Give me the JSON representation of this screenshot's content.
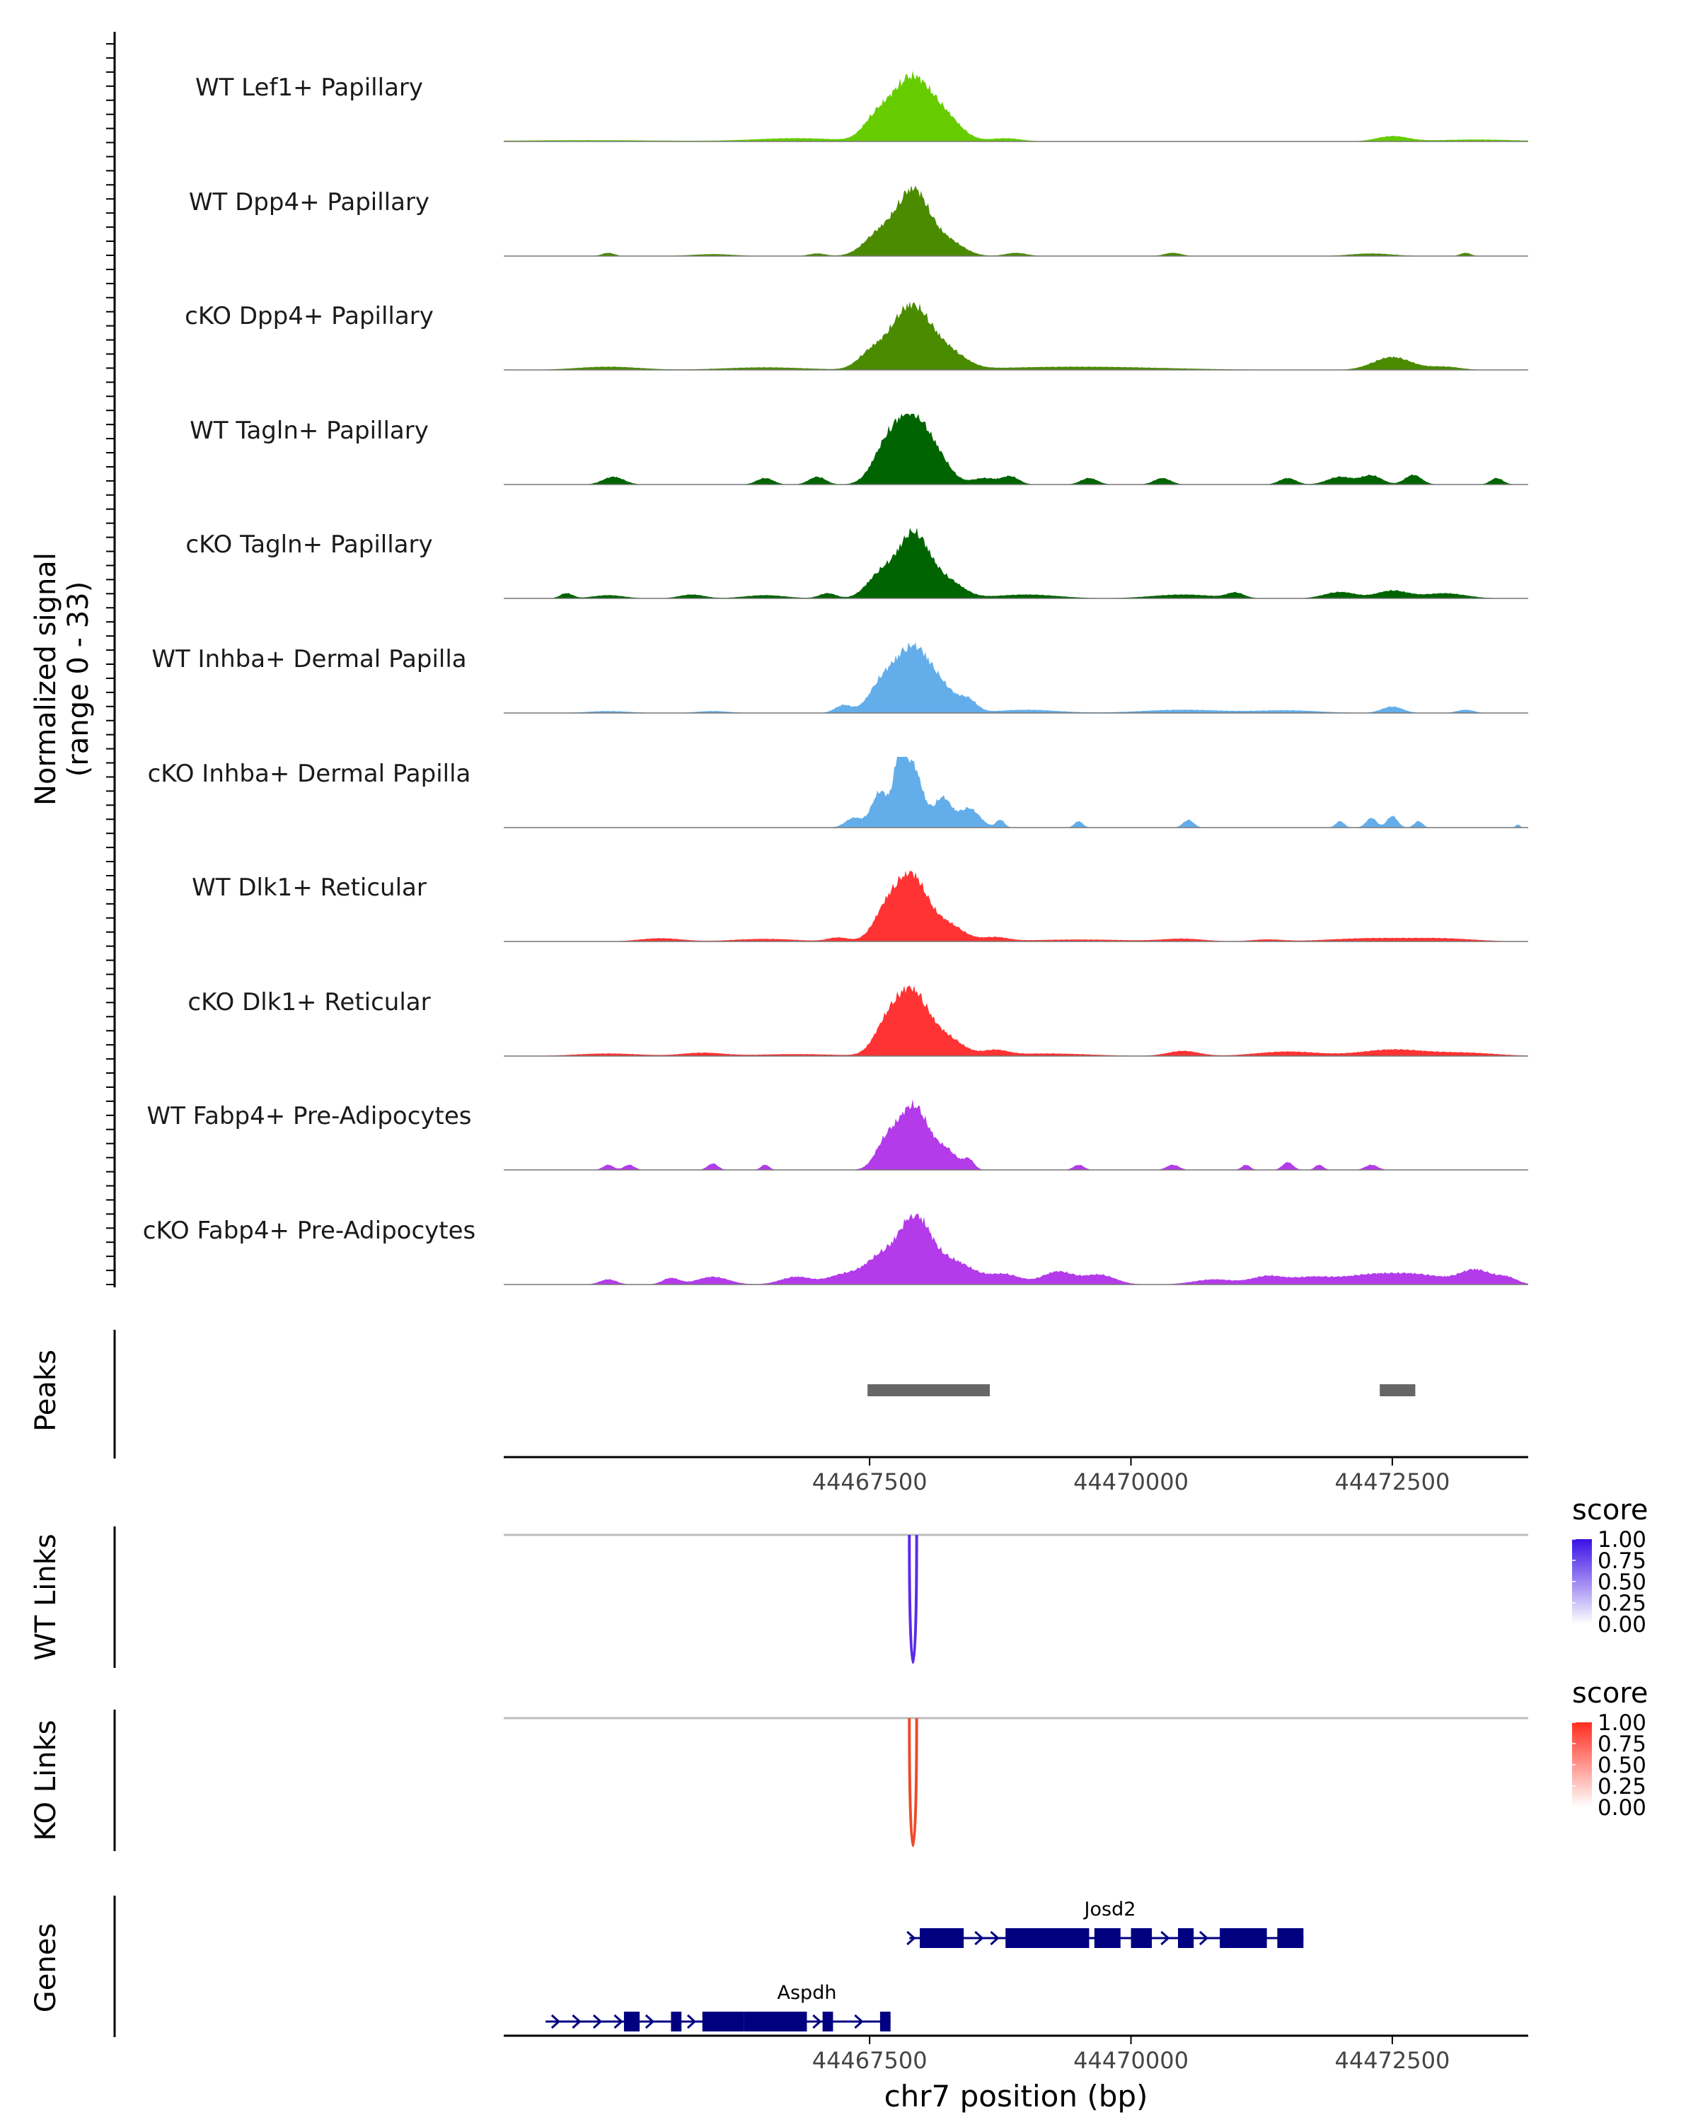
{
  "chart_data": {
    "type": "area",
    "title": "",
    "region": "chr7",
    "xlim": [
      44464000,
      44473800
    ],
    "coverage": {
      "ylabel_line1": "Normalized signal",
      "ylabel_line2": "(range 0 - 33)",
      "ylim": [
        0,
        33
      ],
      "tracks": [
        {
          "name": "WT Lef1+ Papillary",
          "color": "#66CC00",
          "bumps": [
            [
              44467900,
              200,
              1.0
            ],
            [
              44467550,
              120,
              0.25
            ],
            [
              44468250,
              150,
              0.25
            ],
            [
              44464800,
              800,
              0.02
            ],
            [
              44466800,
              400,
              0.05
            ],
            [
              44468800,
              150,
              0.05
            ],
            [
              44472500,
              150,
              0.08
            ],
            [
              44473300,
              400,
              0.03
            ]
          ]
        },
        {
          "name": "WT Dpp4+ Papillary",
          "color": "#4B8B00",
          "bumps": [
            [
              44467920,
              150,
              1.0
            ],
            [
              44467600,
              150,
              0.35
            ],
            [
              44468250,
              150,
              0.22
            ],
            [
              44465000,
              60,
              0.05
            ],
            [
              44466000,
              200,
              0.03
            ],
            [
              44467000,
              80,
              0.04
            ],
            [
              44468900,
              100,
              0.05
            ],
            [
              44470400,
              80,
              0.05
            ],
            [
              44472300,
              200,
              0.04
            ],
            [
              44473200,
              50,
              0.05
            ]
          ]
        },
        {
          "name": "cKO Dpp4+ Papillary",
          "color": "#4B8B00",
          "bumps": [
            [
              44467900,
              200,
              1.0
            ],
            [
              44467500,
              120,
              0.2
            ],
            [
              44468300,
              150,
              0.18
            ],
            [
              44465000,
              300,
              0.05
            ],
            [
              44466500,
              400,
              0.04
            ],
            [
              44469500,
              800,
              0.05
            ],
            [
              44472500,
              180,
              0.2
            ],
            [
              44473000,
              150,
              0.05
            ]
          ]
        },
        {
          "name": "WT Tagln+ Papillary",
          "color": "#006400",
          "bumps": [
            [
              44467900,
              150,
              1.0
            ],
            [
              44467650,
              130,
              0.5
            ],
            [
              44468150,
              130,
              0.35
            ],
            [
              44468600,
              120,
              0.1
            ],
            [
              44468850,
              80,
              0.12
            ],
            [
              44465050,
              100,
              0.12
            ],
            [
              44466500,
              80,
              0.1
            ],
            [
              44467000,
              80,
              0.12
            ],
            [
              44469600,
              80,
              0.1
            ],
            [
              44470300,
              80,
              0.1
            ],
            [
              44471500,
              80,
              0.1
            ],
            [
              44472000,
              120,
              0.12
            ],
            [
              44472300,
              100,
              0.14
            ],
            [
              44472700,
              80,
              0.15
            ],
            [
              44473500,
              60,
              0.1
            ]
          ]
        },
        {
          "name": "cKO Tagln+ Papillary",
          "color": "#006400",
          "bumps": [
            [
              44467920,
              150,
              1.0
            ],
            [
              44467600,
              130,
              0.35
            ],
            [
              44468250,
              150,
              0.25
            ],
            [
              44464600,
              60,
              0.08
            ],
            [
              44465000,
              150,
              0.05
            ],
            [
              44465800,
              120,
              0.06
            ],
            [
              44466500,
              200,
              0.05
            ],
            [
              44467100,
              80,
              0.08
            ],
            [
              44469000,
              300,
              0.06
            ],
            [
              44470500,
              300,
              0.06
            ],
            [
              44471000,
              80,
              0.08
            ],
            [
              44472000,
              150,
              0.1
            ],
            [
              44472500,
              150,
              0.12
            ],
            [
              44473000,
              200,
              0.08
            ]
          ]
        },
        {
          "name": "WT Inhba+ Dermal Papilla",
          "color": "#63AEEA",
          "bumps": [
            [
              44467900,
              170,
              1.0
            ],
            [
              44467600,
              120,
              0.35
            ],
            [
              44468200,
              150,
              0.3
            ],
            [
              44468450,
              80,
              0.15
            ],
            [
              44467250,
              80,
              0.12
            ],
            [
              44465000,
              200,
              0.03
            ],
            [
              44466000,
              150,
              0.03
            ],
            [
              44469000,
              300,
              0.05
            ],
            [
              44470500,
              400,
              0.05
            ],
            [
              44471500,
              300,
              0.04
            ],
            [
              44472500,
              100,
              0.1
            ],
            [
              44473200,
              80,
              0.05
            ]
          ]
        },
        {
          "name": "cKO Inhba+ Dermal Papilla",
          "color": "#63AEEA",
          "bumps": [
            [
              44467900,
              100,
              1.0
            ],
            [
              44467600,
              80,
              0.55
            ],
            [
              44467780,
              50,
              0.7
            ],
            [
              44468200,
              80,
              0.45
            ],
            [
              44468450,
              100,
              0.3
            ],
            [
              44467350,
              80,
              0.15
            ],
            [
              44468750,
              40,
              0.12
            ],
            [
              44469500,
              40,
              0.1
            ],
            [
              44470550,
              50,
              0.12
            ],
            [
              44472000,
              40,
              0.1
            ],
            [
              44472300,
              50,
              0.15
            ],
            [
              44472500,
              50,
              0.18
            ],
            [
              44472750,
              40,
              0.1
            ],
            [
              44473700,
              20,
              0.05
            ]
          ]
        },
        {
          "name": "WT Dlk1+ Reticular",
          "color": "#FF3333",
          "bumps": [
            [
              44467900,
              150,
              1.0
            ],
            [
              44467650,
              120,
              0.4
            ],
            [
              44468250,
              150,
              0.25
            ],
            [
              44468700,
              120,
              0.06
            ],
            [
              44465500,
              200,
              0.05
            ],
            [
              44466500,
              300,
              0.04
            ],
            [
              44467200,
              100,
              0.06
            ],
            [
              44469500,
              500,
              0.03
            ],
            [
              44470500,
              200,
              0.04
            ],
            [
              44471300,
              150,
              0.03
            ],
            [
              44472300,
              400,
              0.05
            ],
            [
              44473000,
              300,
              0.04
            ]
          ]
        },
        {
          "name": "cKO Dlk1+ Reticular",
          "color": "#FF3333",
          "bumps": [
            [
              44467900,
              160,
              1.0
            ],
            [
              44467650,
              120,
              0.35
            ],
            [
              44468250,
              150,
              0.25
            ],
            [
              44468700,
              120,
              0.08
            ],
            [
              44465000,
              300,
              0.04
            ],
            [
              44465900,
              200,
              0.05
            ],
            [
              44466800,
              400,
              0.03
            ],
            [
              44469200,
              400,
              0.04
            ],
            [
              44470500,
              150,
              0.08
            ],
            [
              44471500,
              300,
              0.07
            ],
            [
              44472500,
              300,
              0.1
            ],
            [
              44473200,
              300,
              0.05
            ]
          ]
        },
        {
          "name": "WT Fabp4+ Pre-Adipocytes",
          "color": "#B33BEA",
          "bumps": [
            [
              44467920,
              150,
              1.0
            ],
            [
              44467650,
              100,
              0.35
            ],
            [
              44468250,
              100,
              0.25
            ],
            [
              44468450,
              50,
              0.15
            ],
            [
              44465000,
              50,
              0.08
            ],
            [
              44465200,
              50,
              0.08
            ],
            [
              44466000,
              50,
              0.1
            ],
            [
              44466500,
              40,
              0.08
            ],
            [
              44469500,
              50,
              0.08
            ],
            [
              44470400,
              60,
              0.08
            ],
            [
              44471100,
              40,
              0.08
            ],
            [
              44471500,
              50,
              0.12
            ],
            [
              44471800,
              40,
              0.08
            ],
            [
              44472300,
              60,
              0.08
            ]
          ]
        },
        {
          "name": "cKO Fabp4+ Pre-Adipocytes",
          "color": "#B33BEA",
          "bumps": [
            [
              44467930,
              150,
              1.0
            ],
            [
              44467600,
              150,
              0.4
            ],
            [
              44468300,
              200,
              0.35
            ],
            [
              44467250,
              150,
              0.15
            ],
            [
              44468800,
              150,
              0.15
            ],
            [
              44469300,
              150,
              0.2
            ],
            [
              44469700,
              150,
              0.15
            ],
            [
              44465000,
              80,
              0.08
            ],
            [
              44465600,
              80,
              0.1
            ],
            [
              44466000,
              150,
              0.12
            ],
            [
              44466800,
              150,
              0.12
            ],
            [
              44470800,
              200,
              0.08
            ],
            [
              44471300,
              150,
              0.12
            ],
            [
              44471700,
              200,
              0.1
            ],
            [
              44472300,
              300,
              0.15
            ],
            [
              44472800,
              250,
              0.12
            ],
            [
              44473300,
              150,
              0.22
            ],
            [
              44473600,
              100,
              0.1
            ]
          ]
        }
      ]
    },
    "peaks": {
      "ylabel": "Peaks",
      "color": "#666666",
      "ranges": [
        [
          44467480,
          44468650
        ],
        [
          44472380,
          44472720
        ]
      ],
      "xticks": [
        44467500,
        44470000,
        44472500
      ],
      "xtick_labels": [
        "44467500",
        "44470000",
        "44472500"
      ]
    },
    "links": [
      {
        "ylabel": "WT Links",
        "color": "#5A2BE8",
        "anchor_color": "#BDBDBD",
        "start": 44467880,
        "end": 44467950,
        "score": 1.0,
        "legend_title": "score",
        "legend_labels": [
          "1.00",
          "0.75",
          "0.50",
          "0.25",
          "0.00"
        ],
        "legend_high": "#3A10E5",
        "legend_low": "#FFFFFF"
      },
      {
        "ylabel": "KO Links",
        "color": "#EE4B2B",
        "anchor_color": "#BDBDBD",
        "start": 44467880,
        "end": 44467950,
        "score": 1.0,
        "legend_title": "score",
        "legend_labels": [
          "1.00",
          "0.75",
          "0.50",
          "0.25",
          "0.00"
        ],
        "legend_high": "#FF2D20",
        "legend_low": "#FFFFFF"
      }
    ],
    "genes": {
      "ylabel": "Genes",
      "color": "#000080",
      "models": [
        {
          "name": "Josd2",
          "label_pos": 44469800,
          "start": 44467880,
          "end": 44471650,
          "exons": [
            [
              44467980,
              44468400
            ],
            [
              44468800,
              44469600
            ],
            [
              44469650,
              44469900
            ],
            [
              44470000,
              44470200
            ],
            [
              44470450,
              44470600
            ],
            [
              44470850,
              44471300
            ],
            [
              44471400,
              44471650
            ]
          ],
          "arrows": [
            44467900,
            44468550,
            44468700,
            44470330,
            44470700
          ]
        },
        {
          "name": "Aspdh",
          "label_pos": 44466900,
          "start": 44464400,
          "end": 44467700,
          "exons": [
            [
              44465150,
              44465300
            ],
            [
              44465600,
              44465700
            ],
            [
              44465900,
              44466300
            ],
            [
              44466300,
              44466900
            ],
            [
              44467050,
              44467150
            ],
            [
              44467600,
              44467700
            ]
          ],
          "arrows": [
            44464500,
            44464700,
            44464900,
            44465100,
            44465400,
            44465800,
            44467000,
            44467400
          ]
        }
      ],
      "xticks": [
        44467500,
        44470000,
        44472500
      ],
      "xtick_labels": [
        "44467500",
        "44470000",
        "44472500"
      ],
      "xlabel": "chr7 position (bp)"
    }
  }
}
